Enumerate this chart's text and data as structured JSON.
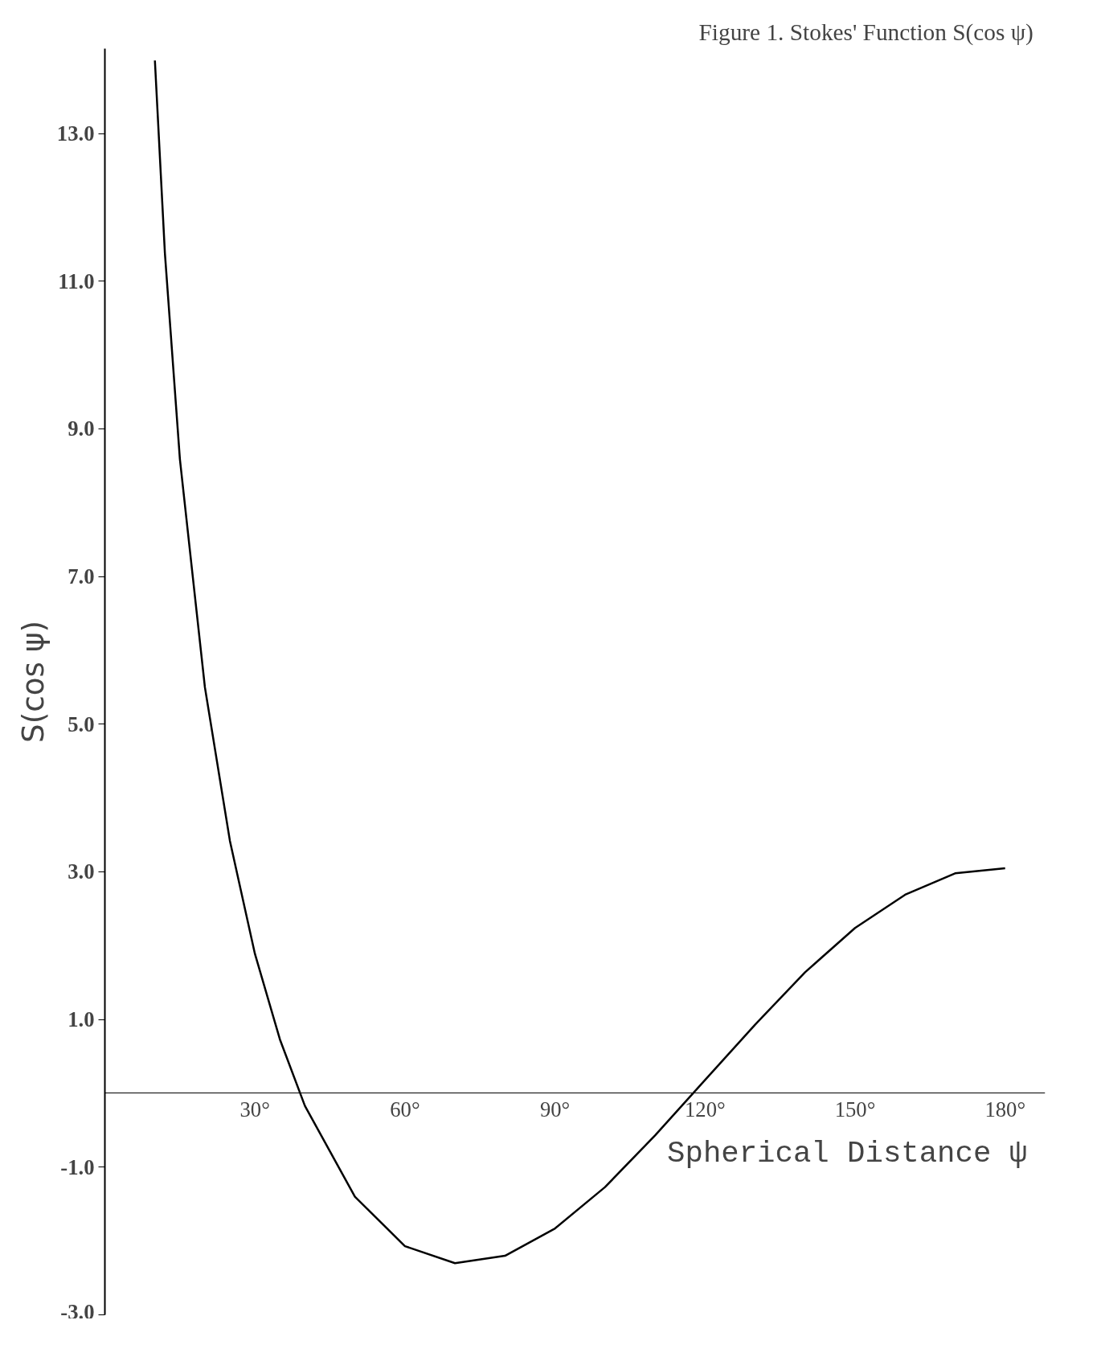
{
  "chart_data": {
    "type": "line",
    "title": "Figure 1.  Stokes' Function  S(cos ψ)",
    "xlabel": "Spherical Distance  ψ",
    "ylabel": "S(cos ψ)",
    "x": [
      10,
      12,
      15,
      20,
      25,
      30,
      35,
      40,
      50,
      60,
      70,
      80,
      90,
      100,
      110,
      120,
      130,
      140,
      150,
      160,
      170,
      180
    ],
    "series": [
      {
        "color": "#000000",
        "values": [
          13.99,
          11.38,
          8.59,
          5.5,
          3.42,
          1.89,
          0.73,
          -0.17,
          -1.4,
          -2.07,
          -2.3,
          -2.2,
          -1.83,
          -1.27,
          -0.57,
          0.18,
          0.93,
          1.64,
          2.24,
          2.69,
          2.98,
          3.05
        ]
      }
    ],
    "xlim": [
      0,
      188
    ],
    "ylim": [
      -3.0,
      14.15
    ],
    "xticks": [
      {
        "value": 30,
        "label": "30°"
      },
      {
        "value": 60,
        "label": "60°"
      },
      {
        "value": 90,
        "label": "90°"
      },
      {
        "value": 120,
        "label": "120°"
      },
      {
        "value": 150,
        "label": "150°"
      },
      {
        "value": 180,
        "label": "180°"
      }
    ],
    "yticks": [
      {
        "value": -3,
        "label": "-3.0"
      },
      {
        "value": -1,
        "label": "-1.0"
      },
      {
        "value": 1,
        "label": "1.0"
      },
      {
        "value": 3,
        "label": "3.0"
      },
      {
        "value": 5,
        "label": "5.0"
      },
      {
        "value": 7,
        "label": "7.0"
      },
      {
        "value": 9,
        "label": "9.0"
      },
      {
        "value": 11,
        "label": "11.0"
      },
      {
        "value": 13,
        "label": "13.0"
      }
    ],
    "grid": false,
    "marker": "none",
    "line_style": "solid"
  }
}
